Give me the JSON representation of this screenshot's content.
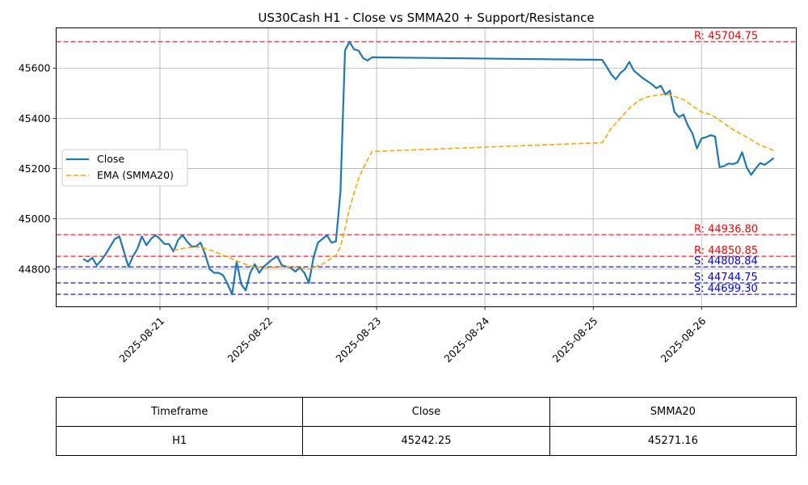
{
  "chart_data": {
    "type": "line",
    "title": "US30Cash H1 - Close vs SMMA20 + Support/Resistance",
    "xlabel": "",
    "ylabel": "",
    "x_ticks": [
      "2025-08-21",
      "2025-08-22",
      "2025-08-23",
      "2025-08-24",
      "2025-08-25",
      "2025-08-26"
    ],
    "y_ticks": [
      44800,
      45000,
      45200,
      45400,
      45600
    ],
    "xlim": [
      "2025-08-20 01:00",
      "2025-08-26 21:00"
    ],
    "ylim": [
      44650,
      45760
    ],
    "grid": true,
    "legend_position": "center-left",
    "series": [
      {
        "name": "Close",
        "color": "#1f77b4",
        "style": "solid",
        "points": [
          [
            "2025-08-20 07:00",
            44840
          ],
          [
            "2025-08-20 08:00",
            44830
          ],
          [
            "2025-08-20 09:00",
            44845
          ],
          [
            "2025-08-20 10:00",
            44815
          ],
          [
            "2025-08-20 11:00",
            44835
          ],
          [
            "2025-08-20 12:00",
            44860
          ],
          [
            "2025-08-20 13:00",
            44890
          ],
          [
            "2025-08-20 14:00",
            44920
          ],
          [
            "2025-08-20 15:00",
            44930
          ],
          [
            "2025-08-20 16:00",
            44870
          ],
          [
            "2025-08-20 17:00",
            44810
          ],
          [
            "2025-08-20 18:00",
            44850
          ],
          [
            "2025-08-20 19:00",
            44880
          ],
          [
            "2025-08-20 20:00",
            44930
          ],
          [
            "2025-08-20 21:00",
            44895
          ],
          [
            "2025-08-20 22:00",
            44920
          ],
          [
            "2025-08-20 23:00",
            44935
          ],
          [
            "2025-08-21 00:00",
            44920
          ],
          [
            "2025-08-21 01:00",
            44900
          ],
          [
            "2025-08-21 02:00",
            44900
          ],
          [
            "2025-08-21 03:00",
            44870
          ],
          [
            "2025-08-21 04:00",
            44915
          ],
          [
            "2025-08-21 05:00",
            44935
          ],
          [
            "2025-08-21 06:00",
            44910
          ],
          [
            "2025-08-21 07:00",
            44890
          ],
          [
            "2025-08-21 08:00",
            44890
          ],
          [
            "2025-08-21 09:00",
            44905
          ],
          [
            "2025-08-21 10:00",
            44860
          ],
          [
            "2025-08-21 11:00",
            44800
          ],
          [
            "2025-08-21 12:00",
            44785
          ],
          [
            "2025-08-21 13:00",
            44785
          ],
          [
            "2025-08-21 14:00",
            44775
          ],
          [
            "2025-08-21 15:00",
            44740
          ],
          [
            "2025-08-21 16:00",
            44700
          ],
          [
            "2025-08-21 17:00",
            44830
          ],
          [
            "2025-08-21 18:00",
            44740
          ],
          [
            "2025-08-21 19:00",
            44715
          ],
          [
            "2025-08-21 20:00",
            44785
          ],
          [
            "2025-08-21 21:00",
            44820
          ],
          [
            "2025-08-21 22:00",
            44785
          ],
          [
            "2025-08-21 23:00",
            44810
          ],
          [
            "2025-08-22 00:00",
            44825
          ],
          [
            "2025-08-22 01:00",
            44840
          ],
          [
            "2025-08-22 02:00",
            44850
          ],
          [
            "2025-08-22 03:00",
            44815
          ],
          [
            "2025-08-22 04:00",
            44810
          ],
          [
            "2025-08-22 05:00",
            44805
          ],
          [
            "2025-08-22 06:00",
            44790
          ],
          [
            "2025-08-22 07:00",
            44805
          ],
          [
            "2025-08-22 08:00",
            44785
          ],
          [
            "2025-08-22 09:00",
            44745
          ],
          [
            "2025-08-22 10:00",
            44845
          ],
          [
            "2025-08-22 11:00",
            44905
          ],
          [
            "2025-08-22 12:00",
            44920
          ],
          [
            "2025-08-22 13:00",
            44935
          ],
          [
            "2025-08-22 14:00",
            44905
          ],
          [
            "2025-08-22 15:00",
            44910
          ],
          [
            "2025-08-22 16:00",
            45110
          ],
          [
            "2025-08-22 17:00",
            45670
          ],
          [
            "2025-08-22 18:00",
            45705
          ],
          [
            "2025-08-22 19:00",
            45675
          ],
          [
            "2025-08-22 20:00",
            45670
          ],
          [
            "2025-08-22 21:00",
            45640
          ],
          [
            "2025-08-22 22:00",
            45630
          ],
          [
            "2025-08-22 23:00",
            45643
          ],
          [
            "2025-08-25 02:00",
            45633
          ],
          [
            "2025-08-25 03:00",
            45605
          ],
          [
            "2025-08-25 04:00",
            45575
          ],
          [
            "2025-08-25 05:00",
            45555
          ],
          [
            "2025-08-25 06:00",
            45580
          ],
          [
            "2025-08-25 07:00",
            45595
          ],
          [
            "2025-08-25 08:00",
            45625
          ],
          [
            "2025-08-25 09:00",
            45590
          ],
          [
            "2025-08-25 10:00",
            45575
          ],
          [
            "2025-08-25 11:00",
            45560
          ],
          [
            "2025-08-25 12:00",
            45548
          ],
          [
            "2025-08-25 13:00",
            45535
          ],
          [
            "2025-08-25 14:00",
            45520
          ],
          [
            "2025-08-25 15:00",
            45530
          ],
          [
            "2025-08-25 16:00",
            45495
          ],
          [
            "2025-08-25 17:00",
            45510
          ],
          [
            "2025-08-25 18:00",
            45425
          ],
          [
            "2025-08-25 19:00",
            45405
          ],
          [
            "2025-08-25 20:00",
            45415
          ],
          [
            "2025-08-25 21:00",
            45370
          ],
          [
            "2025-08-25 22:00",
            45340
          ],
          [
            "2025-08-25 23:00",
            45280
          ],
          [
            "2025-08-26 00:00",
            45320
          ],
          [
            "2025-08-26 01:00",
            45325
          ],
          [
            "2025-08-26 02:00",
            45333
          ],
          [
            "2025-08-26 03:00",
            45328
          ],
          [
            "2025-08-26 04:00",
            45205
          ],
          [
            "2025-08-26 05:00",
            45210
          ],
          [
            "2025-08-26 06:00",
            45220
          ],
          [
            "2025-08-26 07:00",
            45218
          ],
          [
            "2025-08-26 08:00",
            45225
          ],
          [
            "2025-08-26 09:00",
            45265
          ],
          [
            "2025-08-26 10:00",
            45205
          ],
          [
            "2025-08-26 11:00",
            45175
          ],
          [
            "2025-08-26 12:00",
            45200
          ],
          [
            "2025-08-26 13:00",
            45222
          ],
          [
            "2025-08-26 14:00",
            45215
          ],
          [
            "2025-08-26 15:00",
            45228
          ],
          [
            "2025-08-26 16:00",
            45242.25
          ]
        ]
      },
      {
        "name": "EMA (SMMA20)",
        "color": "#ffa500",
        "style": "dashed",
        "points": [
          [
            "2025-08-21 03:00",
            44875
          ],
          [
            "2025-08-21 06:00",
            44885
          ],
          [
            "2025-08-21 09:00",
            44888
          ],
          [
            "2025-08-21 12:00",
            44870
          ],
          [
            "2025-08-21 15:00",
            44848
          ],
          [
            "2025-08-21 18:00",
            44825
          ],
          [
            "2025-08-21 21:00",
            44808
          ],
          [
            "2025-08-22 00:00",
            44805
          ],
          [
            "2025-08-22 03:00",
            44810
          ],
          [
            "2025-08-22 06:00",
            44807
          ],
          [
            "2025-08-22 09:00",
            44800
          ],
          [
            "2025-08-22 12:00",
            44820
          ],
          [
            "2025-08-22 15:00",
            44855
          ],
          [
            "2025-08-22 16:00",
            44890
          ],
          [
            "2025-08-22 17:00",
            44960
          ],
          [
            "2025-08-22 18:00",
            45040
          ],
          [
            "2025-08-22 19:00",
            45100
          ],
          [
            "2025-08-22 20:00",
            45160
          ],
          [
            "2025-08-22 21:00",
            45200
          ],
          [
            "2025-08-22 22:00",
            45235
          ],
          [
            "2025-08-22 23:00",
            45268
          ],
          [
            "2025-08-25 02:00",
            45303
          ],
          [
            "2025-08-25 03:00",
            45330
          ],
          [
            "2025-08-25 04:00",
            45360
          ],
          [
            "2025-08-25 06:00",
            45400
          ],
          [
            "2025-08-25 08:00",
            45440
          ],
          [
            "2025-08-25 10:00",
            45470
          ],
          [
            "2025-08-25 12:00",
            45485
          ],
          [
            "2025-08-25 14:00",
            45492
          ],
          [
            "2025-08-25 16:00",
            45497
          ],
          [
            "2025-08-25 18:00",
            45487
          ],
          [
            "2025-08-25 20:00",
            45475
          ],
          [
            "2025-08-25 22:00",
            45450
          ],
          [
            "2025-08-26 00:00",
            45425
          ],
          [
            "2025-08-26 02:00",
            45415
          ],
          [
            "2025-08-26 03:00",
            45405
          ],
          [
            "2025-08-26 05:00",
            45380
          ],
          [
            "2025-08-26 07:00",
            45355
          ],
          [
            "2025-08-26 09:00",
            45335
          ],
          [
            "2025-08-26 11:00",
            45315
          ],
          [
            "2025-08-26 13:00",
            45293
          ],
          [
            "2025-08-26 15:00",
            45280
          ],
          [
            "2025-08-26 16:00",
            45271.16
          ]
        ]
      }
    ],
    "levels": [
      {
        "kind": "resistance",
        "value": 45704.75,
        "label": "R: 45704.75",
        "color": "#ff0000"
      },
      {
        "kind": "resistance",
        "value": 44936.8,
        "label": "R: 44936.80",
        "color": "#ff0000"
      },
      {
        "kind": "resistance",
        "value": 44850.85,
        "label": "R: 44850.85",
        "color": "#ff0000"
      },
      {
        "kind": "support",
        "value": 44808.84,
        "label": "S: 44808.84",
        "color": "#0000ff"
      },
      {
        "kind": "support",
        "value": 44744.75,
        "label": "S: 44744.75",
        "color": "#0000ff"
      },
      {
        "kind": "support",
        "value": 44699.3,
        "label": "S: 44699.30",
        "color": "#0000ff"
      }
    ]
  },
  "table": {
    "headers": [
      "Timeframe",
      "Close",
      "SMMA20"
    ],
    "row": [
      "H1",
      "45242.25",
      "45271.16"
    ]
  }
}
